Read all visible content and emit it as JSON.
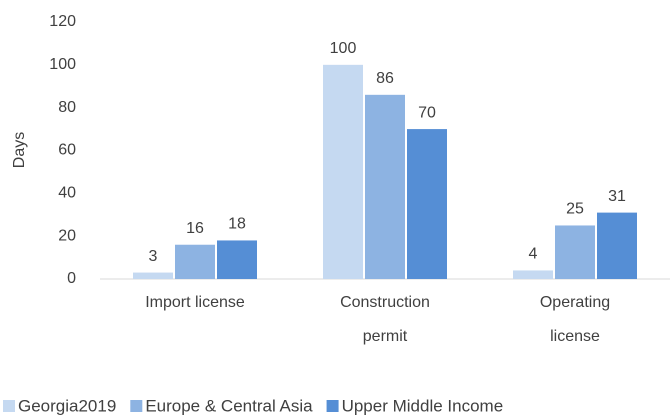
{
  "chart_data": {
    "type": "bar",
    "y_label": "Days",
    "categories": [
      "Import license",
      "Construction permit",
      "Operating license"
    ],
    "series": [
      {
        "name": "Georgia2019",
        "color": "#c5d9f1",
        "values": [
          3,
          100,
          4
        ]
      },
      {
        "name": "Europe & Central Asia",
        "color": "#8db3e2",
        "values": [
          16,
          86,
          25
        ]
      },
      {
        "name": "Upper Middle Income",
        "color": "#558ed5",
        "values": [
          18,
          70,
          31
        ]
      }
    ],
    "ylim": [
      0,
      120
    ],
    "yticks": [
      0,
      20,
      40,
      60,
      80,
      100,
      120
    ],
    "grid": false
  }
}
